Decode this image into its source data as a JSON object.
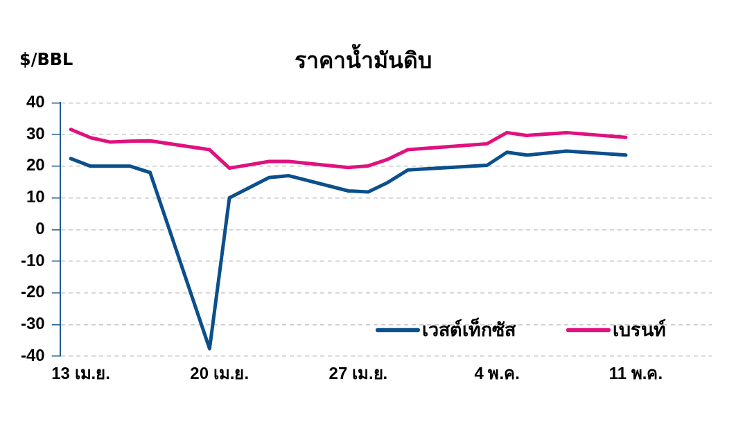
{
  "chart_data": {
    "type": "line",
    "title": "ราคาน้ำมันดิบ",
    "ylabel": "$/BBL",
    "x": [
      "--04-13",
      "--04-14",
      "--04-15",
      "--04-16",
      "--04-17",
      "--04-20",
      "--04-21",
      "--04-23",
      "--04-24",
      "--04-27",
      "--04-28",
      "--04-29",
      "--04-30",
      "--05-04",
      "--05-05",
      "--05-06",
      "--05-08",
      "--05-11"
    ],
    "series": [
      {
        "name": "เวสต์เท็กซัส",
        "color": "#0b4f8c",
        "values": [
          22.4,
          20,
          20,
          20,
          18,
          -37.6,
          10,
          16.4,
          17,
          12.2,
          11.9,
          14.9,
          18.8,
          20.3,
          24.4,
          23.5,
          24.8,
          23.5
        ]
      },
      {
        "name": "เบรนท์",
        "color": "#e0117f",
        "values": [
          31.6,
          29,
          27.6,
          27.9,
          28,
          25.2,
          19.4,
          21.5,
          21.5,
          19.6,
          20.1,
          22.2,
          25.2,
          27.1,
          30.6,
          29.7,
          30.6,
          29.1
        ]
      }
    ],
    "xlim": [
      "--04-12T11:00",
      "--05-15T08:00"
    ],
    "xticks": [
      {
        "value": "--04-13T12:00",
        "label": "13 เม.ย."
      },
      {
        "value": "--04-20T12:00",
        "label": "20 เม.ย."
      },
      {
        "value": "--04-27T12:00",
        "label": "27 เม.ย."
      },
      {
        "value": "--05-04T12:00",
        "label": "4 พ.ค."
      },
      {
        "value": "--05-11T12:00",
        "label": "11 พ.ค."
      }
    ],
    "ylim": [
      -40,
      40
    ],
    "yticks": [
      -40,
      -30,
      -20,
      -10,
      0,
      10,
      20,
      30,
      40
    ],
    "grid": "y",
    "legend": "bottom right",
    "marker": "none",
    "line_style": "solid"
  }
}
